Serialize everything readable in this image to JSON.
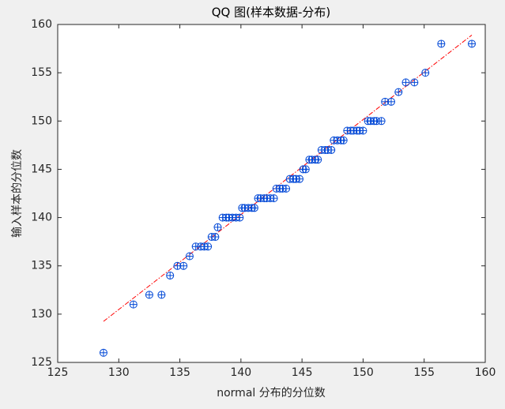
{
  "chart_data": {
    "type": "scatter",
    "title": "QQ 图(样本数据-分布)",
    "x_label": "normal 分布的分位数",
    "y_label": "输入样本的分位数",
    "xlim": [
      125,
      160
    ],
    "xticks": [
      125,
      130,
      135,
      140,
      145,
      150,
      155,
      160
    ],
    "ylim": [
      125,
      160
    ],
    "yticks": [
      125,
      130,
      135,
      140,
      145,
      150,
      155,
      160
    ],
    "grid": false,
    "points": {
      "color": "#0047d6",
      "x": [
        128.75,
        131.2,
        132.5,
        133.5,
        134.2,
        134.8,
        135.3,
        135.8,
        136.3,
        136.7,
        137.0,
        137.3,
        137.6,
        137.9,
        138.1,
        138.5,
        138.8,
        139.0,
        139.3,
        139.6,
        139.9,
        140.1,
        140.3,
        140.6,
        140.9,
        141.1,
        141.4,
        141.6,
        141.9,
        142.1,
        142.4,
        142.7,
        142.9,
        143.2,
        143.4,
        143.7,
        144.0,
        144.3,
        144.5,
        144.8,
        145.1,
        145.3,
        145.6,
        145.8,
        146.1,
        146.3,
        146.6,
        146.9,
        147.1,
        147.4,
        147.6,
        147.9,
        148.2,
        148.4,
        148.7,
        149.0,
        149.2,
        149.5,
        149.7,
        150.0,
        150.4,
        150.6,
        150.9,
        151.1,
        151.5,
        151.8,
        152.3,
        152.9,
        153.5,
        154.2,
        155.1,
        156.4,
        158.9
      ],
      "values": [
        126,
        131,
        132,
        132,
        134,
        135,
        135,
        136,
        137,
        137,
        137,
        137,
        138,
        138,
        139,
        140,
        140,
        140,
        140,
        140,
        140,
        141,
        141,
        141,
        141,
        141,
        142,
        142,
        142,
        142,
        142,
        142,
        143,
        143,
        143,
        143,
        144,
        144,
        144,
        144,
        145,
        145,
        146,
        146,
        146,
        146,
        147,
        147,
        147,
        147,
        148,
        148,
        148,
        148,
        149,
        149,
        149,
        149,
        149,
        149,
        150,
        150,
        150,
        150,
        150,
        152,
        152,
        153,
        154,
        154,
        155,
        158,
        158
      ]
    },
    "reference_line": {
      "color": "#ff0000",
      "x": [
        128.75,
        158.9
      ],
      "values": [
        129.25,
        158.9
      ]
    }
  }
}
